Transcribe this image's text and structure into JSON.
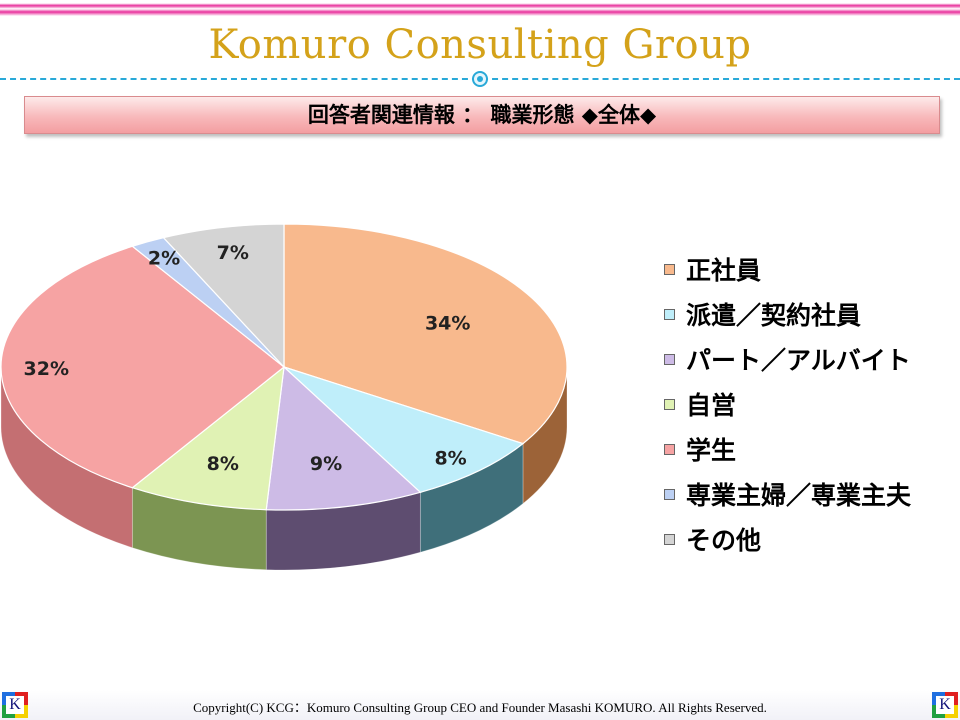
{
  "brand": "Komuro Consulting Group",
  "slide_title": "回答者関連情報 ： 職業形態 ◆全体◆",
  "footer": "Copyright(C)  KCG：Komuro Consulting Group   CEO and Founder   Masashi KOMURO. All Rights Reserved.",
  "logo_letter": "K",
  "chart_data": {
    "type": "pie",
    "title": "",
    "legend_position": "right",
    "categories": [
      "正社員",
      "派遣／契約社員",
      "パート／アルバイト",
      "自営",
      "学生",
      "専業主婦／専業主夫",
      "その他"
    ],
    "values": [
      34,
      8,
      9,
      8,
      32,
      2,
      7
    ],
    "labels": [
      "34%",
      "8%",
      "9%",
      "8%",
      "32%",
      "2%",
      "7%"
    ],
    "colors": [
      "#f8b98d",
      "#bfeefa",
      "#cdbbe6",
      "#e0f2b4",
      "#f6a3a3",
      "#bcd0f3",
      "#d4d4d4"
    ],
    "side_colors": [
      "#9c6338",
      "#3f6f7a",
      "#5e4d70",
      "#7c9552",
      "#c46f72",
      "#6d82a8",
      "#8a8a8a"
    ]
  }
}
